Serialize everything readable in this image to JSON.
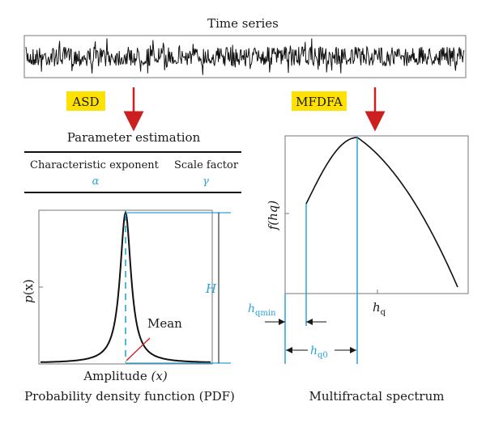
{
  "top": {
    "title": "Time series"
  },
  "steps": {
    "left_badge": "ASD",
    "right_badge": "MFDFA",
    "badge_color": "#ffe100",
    "arrow_color": "#cc1f1f"
  },
  "parameter_table": {
    "title": "Parameter estimation",
    "col1_label": "Characteristic exponent",
    "col1_symbol": "α",
    "col2_label": "Scale factor",
    "col2_symbol": "γ"
  },
  "pdf_panel": {
    "ylabel_main": "p",
    "ylabel_var": "(x)",
    "xlabel_main": "Amplitude",
    "xlabel_var": "(x)",
    "peak_label": "H",
    "mean_label": "Mean",
    "caption": "Probability density function (PDF)"
  },
  "spectrum_panel": {
    "ylabel": "f(hq)",
    "xlabel_h": "h",
    "xlabel_sub": "q",
    "hmin_h": "h",
    "hmin_sub": "qmin",
    "h0_h": "h",
    "h0_sub": "q0",
    "caption": "Multifractal spectrum"
  },
  "colors": {
    "accent": "#2aa3d6",
    "line": "#1a1a1a"
  }
}
